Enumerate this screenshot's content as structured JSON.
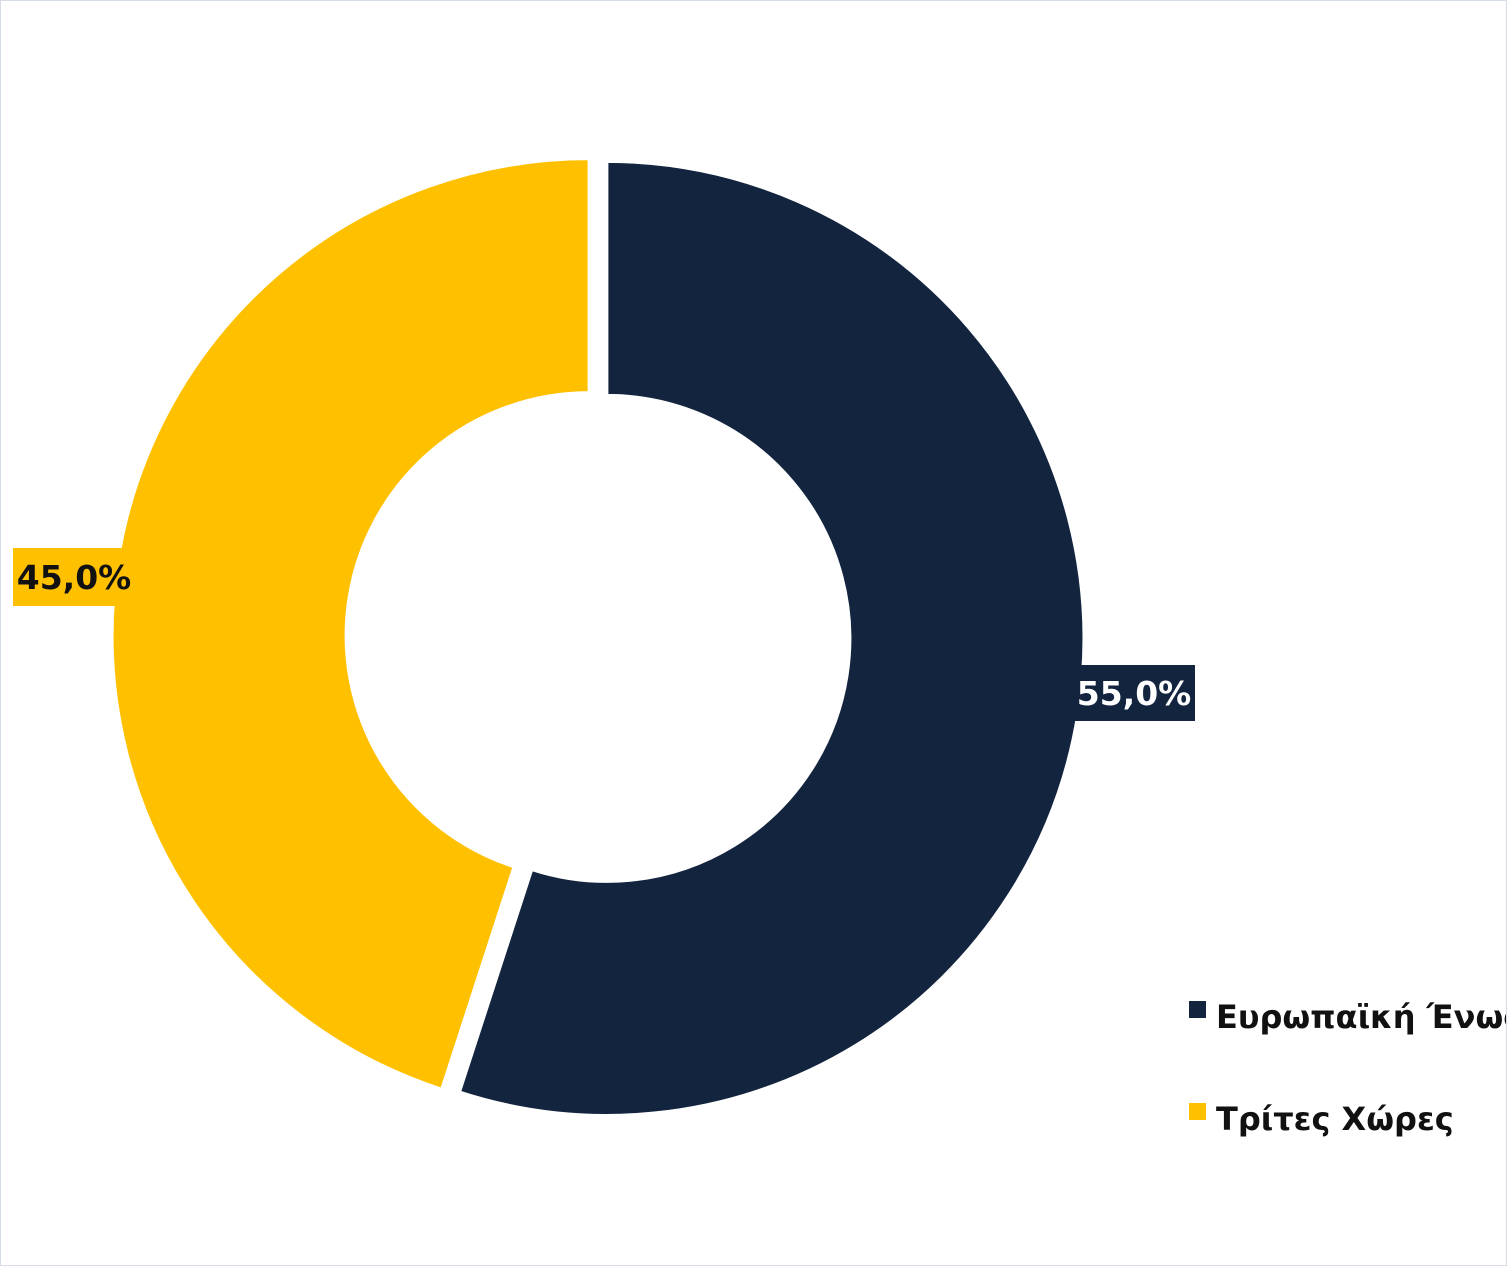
{
  "chart_data": {
    "type": "pie",
    "donut": true,
    "title": "",
    "slices": [
      {
        "label": "Ευρωπαϊκή Ένωση",
        "value": 55.0,
        "display": "55,0%",
        "color": "#13243f",
        "label_text_color": "#ffffff"
      },
      {
        "label": "Τρίτες Χώρες",
        "value": 45.0,
        "display": "45,0%",
        "color": "#ffc000",
        "label_text_color": "#111111"
      }
    ],
    "legend": {
      "position": "bottom-right",
      "items": [
        "Ευρωπαϊκή Ένωση",
        "Τρίτες Χώρες"
      ]
    }
  }
}
